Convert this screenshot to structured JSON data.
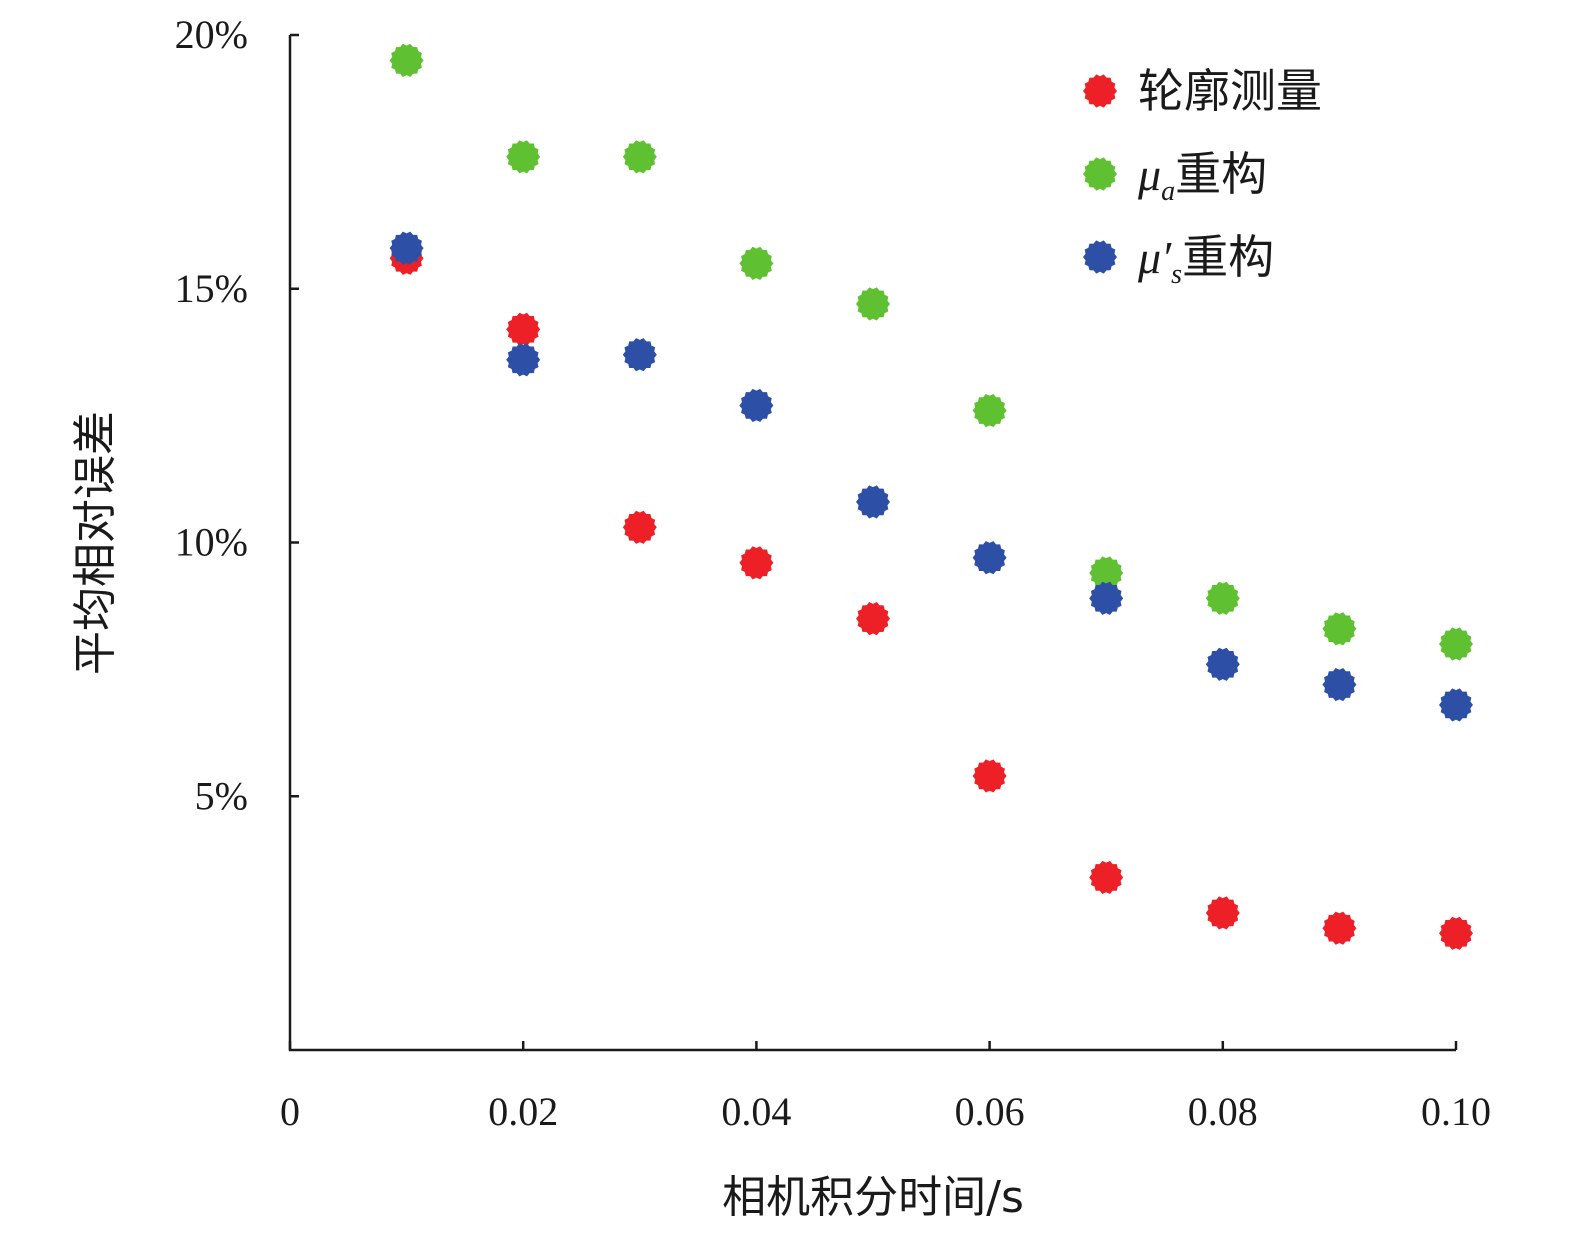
{
  "chart_data": {
    "type": "scatter",
    "xlabel": "相机积分时间/s",
    "ylabel": "平均相对误差",
    "xlim": [
      0,
      0.1
    ],
    "ylim": [
      0,
      20
    ],
    "x_ticks": [
      "0",
      "0.02",
      "0.04",
      "0.06",
      "0.08",
      "0.10"
    ],
    "x_tick_values": [
      0,
      0.02,
      0.04,
      0.06,
      0.08,
      0.1
    ],
    "y_ticks": [
      "5%",
      "10%",
      "15%",
      "20%"
    ],
    "y_tick_values": [
      5,
      10,
      15,
      20
    ],
    "legend_position": "top-right",
    "grid": false,
    "x": [
      0.01,
      0.02,
      0.03,
      0.04,
      0.05,
      0.06,
      0.07,
      0.08,
      0.09,
      0.1
    ],
    "series": [
      {
        "name": "轮廓测量",
        "legend_symbol": "",
        "legend_subscript": "",
        "legend_text": "轮廓测量",
        "color": "#ee2027",
        "values": [
          15.6,
          14.2,
          10.3,
          9.6,
          8.5,
          5.4,
          3.4,
          2.7,
          2.4,
          2.3
        ]
      },
      {
        "name": "μa重构",
        "legend_symbol": "μ",
        "legend_subscript": "a",
        "legend_text": "重构",
        "color": "#5fc031",
        "values": [
          19.5,
          17.6,
          17.6,
          15.5,
          14.7,
          12.6,
          9.4,
          8.9,
          8.3,
          8.0
        ]
      },
      {
        "name": "μ′s重构",
        "legend_symbol": "μ′",
        "legend_subscript": "s",
        "legend_text": "重构",
        "color": "#2d4fa6",
        "values": [
          15.8,
          13.6,
          13.7,
          12.7,
          10.8,
          9.7,
          8.9,
          7.6,
          7.2,
          6.8
        ]
      }
    ]
  }
}
